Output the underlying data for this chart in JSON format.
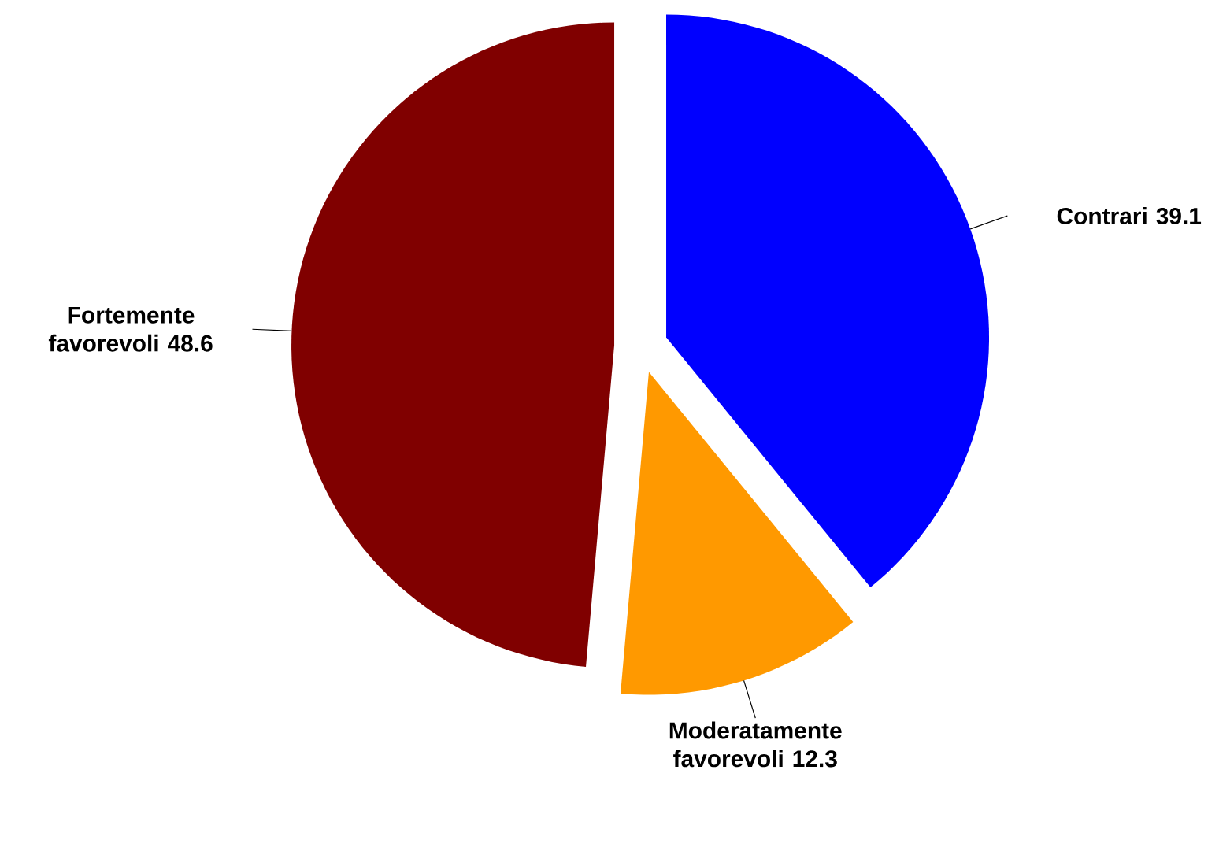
{
  "chart_data": {
    "type": "pie",
    "categories": [
      "Contrari",
      "Moderatamente favorevoli",
      "Fortemente favorevoli"
    ],
    "values": [
      39.1,
      12.3,
      48.6
    ],
    "colors": [
      "#0000ff",
      "#ff9900",
      "#800000"
    ],
    "data_labels": true
  }
}
